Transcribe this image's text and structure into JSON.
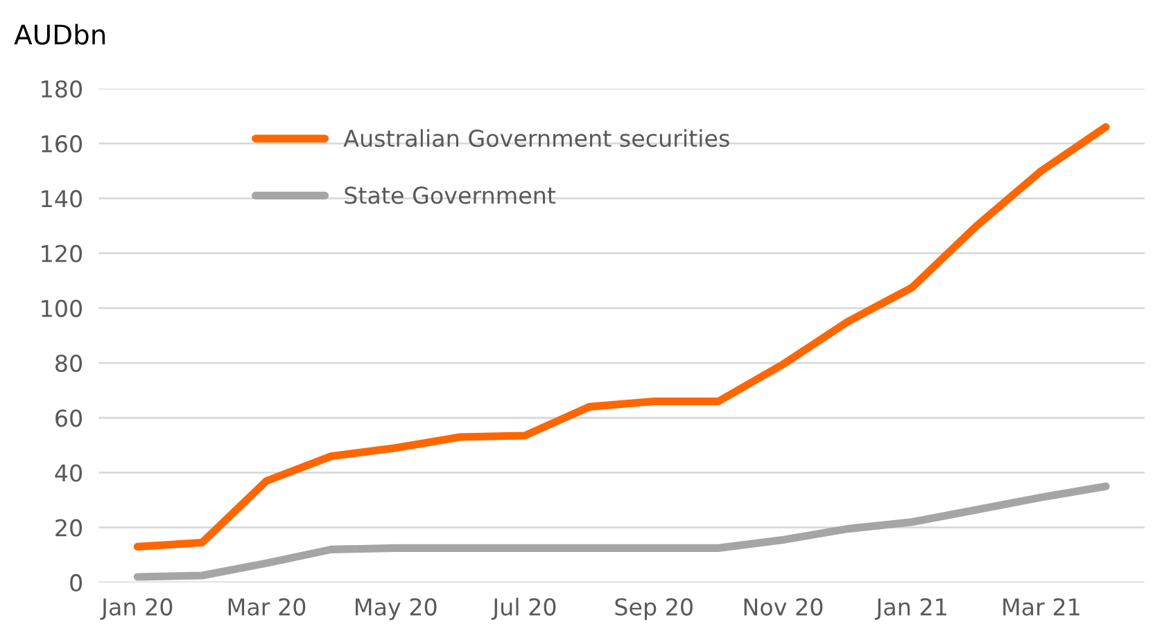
{
  "chart_data": {
    "type": "line",
    "ylabel": "AUDbn",
    "categories": [
      "Jan 20",
      null,
      "Mar 20",
      null,
      "May 20",
      null,
      "Jul 20",
      null,
      "Sep 20",
      null,
      "Nov 20",
      null,
      "Jan 21",
      null,
      "Mar 21",
      null
    ],
    "series": [
      {
        "name": "Australian Government securities",
        "color": "#ff6600",
        "values": [
          13,
          14.5,
          37,
          46,
          49,
          53,
          53.5,
          64,
          66,
          66,
          79.5,
          95,
          107.5,
          130,
          150,
          166
        ]
      },
      {
        "name": "State Government",
        "color": "#a5a5a5",
        "values": [
          2,
          2.5,
          7,
          12,
          12.5,
          12.5,
          12.5,
          12.5,
          12.5,
          12.5,
          15.5,
          19.5,
          22,
          26.5,
          31,
          35
        ]
      }
    ],
    "ylim": [
      0,
      180
    ],
    "yticks": [
      0,
      20,
      40,
      60,
      80,
      100,
      120,
      140,
      160,
      180
    ],
    "grid": "y",
    "legend": "top left",
    "marker": "none",
    "line_style": "solid"
  }
}
